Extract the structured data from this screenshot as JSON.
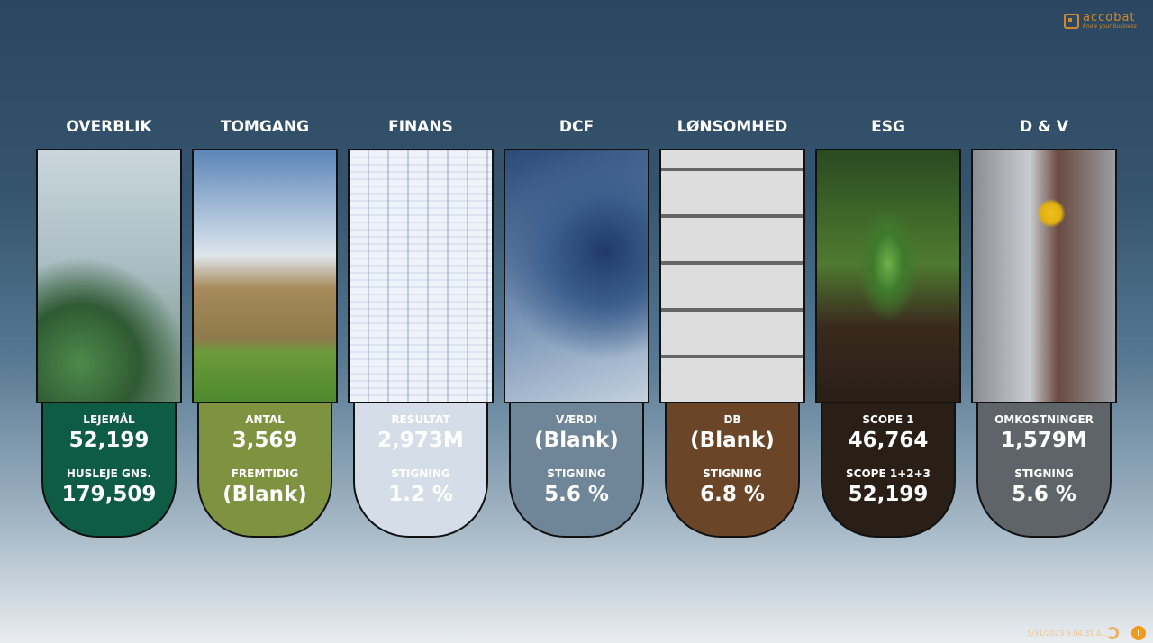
{
  "logo": {
    "name": "accobat",
    "tagline": "Know your business"
  },
  "tiles": [
    {
      "title": "OVERBLIK",
      "image": "keys-house",
      "color": "#0f5c45",
      "text": "#ffffff",
      "l1": "LEJEMÅL",
      "v1": "52,199",
      "l2": "HUSLEJE GNS.",
      "v2": "179,509"
    },
    {
      "title": "TOMGANG",
      "image": "empty-house-field",
      "color": "#7e9240",
      "text": "#ffffff",
      "l1": "ANTAL",
      "v1": "3,569",
      "l2": "FREMTIDIG",
      "v2": "(Blank)"
    },
    {
      "title": "FINANS",
      "image": "spreadsheet-chart",
      "color": "#d5dde8",
      "text": "#ffffff",
      "l1": "RESULTAT",
      "v1": "2,973M",
      "l2": "STIGNING",
      "v2": "1.2 %"
    },
    {
      "title": "DCF",
      "image": "digital-map-tablet",
      "color": "#6f8598",
      "text": "#ffffff",
      "l1": "VÆRDI",
      "v1": "(Blank)",
      "l2": "STIGNING",
      "v2": "5.6 %"
    },
    {
      "title": "LØNSOMHED",
      "image": "calculator",
      "color": "#6b4527",
      "text": "#ffffff",
      "l1": "DB",
      "v1": "(Blank)",
      "l2": "STIGNING",
      "v2": "6.8 %"
    },
    {
      "title": "ESG",
      "image": "tree-sapling",
      "color": "#2a1f17",
      "text": "#ffffff",
      "l1": "SCOPE 1",
      "v1": "46,764",
      "l2": "SCOPE 1+2+3",
      "v2": "52,199"
    },
    {
      "title": "D & V",
      "image": "worker-grinder",
      "color": "#5f6468",
      "text": "#ffffff",
      "l1": "OMKOSTNINGER",
      "v1": "1,579M",
      "l2": "STIGNING",
      "v2": "5.6 %"
    }
  ],
  "footer": {
    "timestamp": "5/31/2023 9:04:31 A...",
    "info": "i"
  }
}
